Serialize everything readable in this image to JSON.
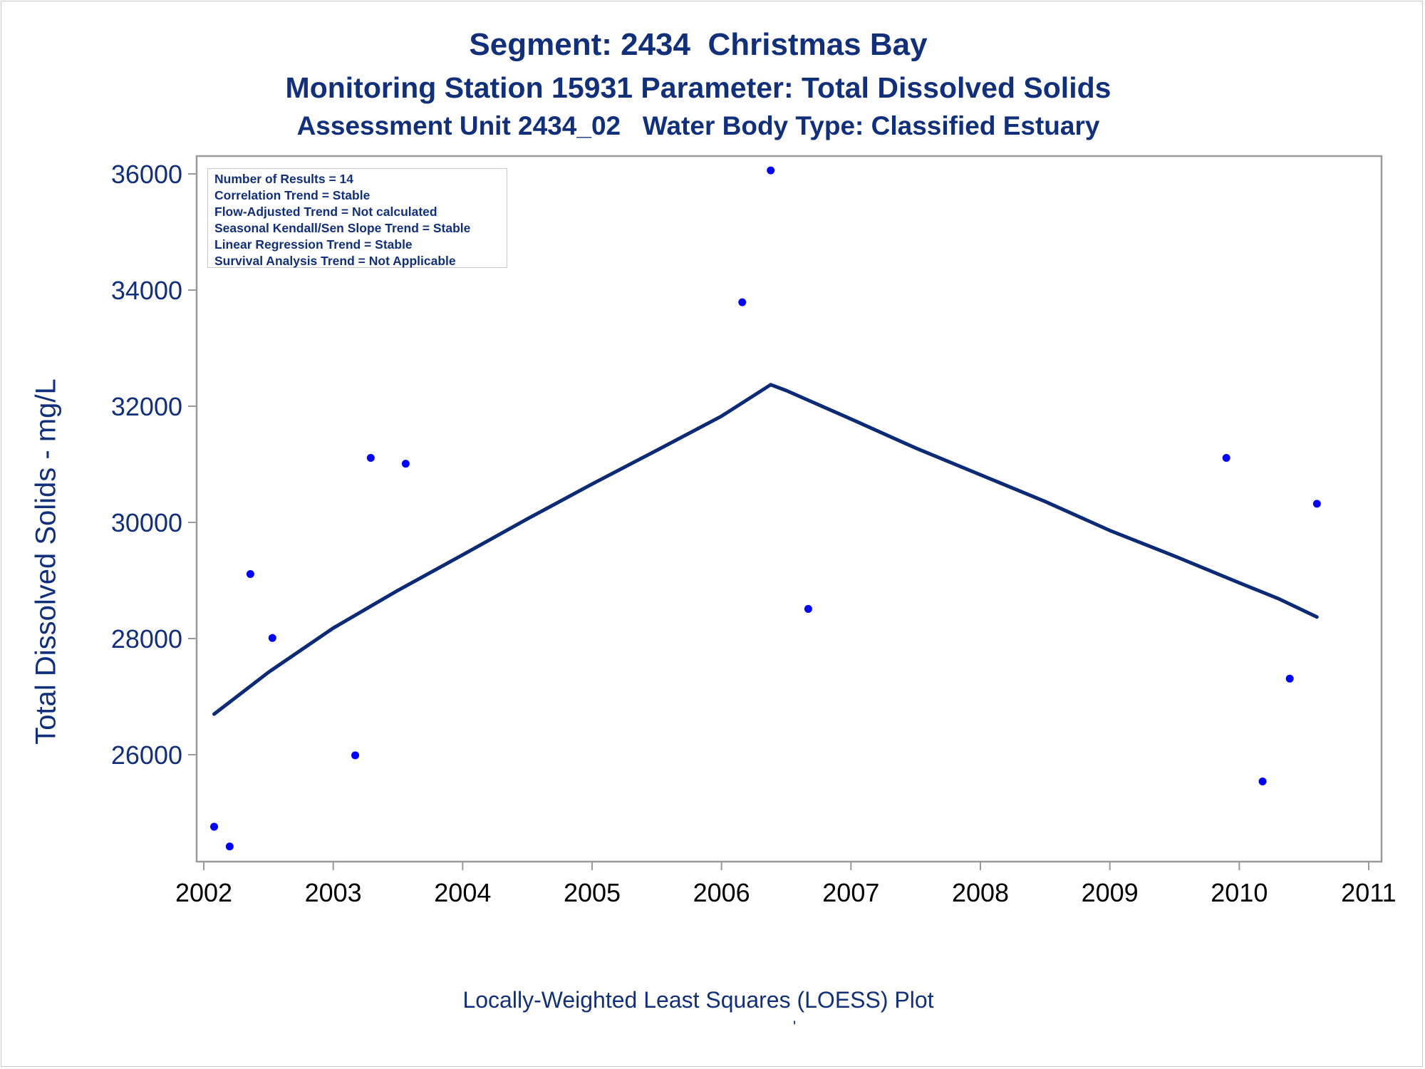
{
  "title": "Segment: 2434  Christmas Bay",
  "subtitle": "Monitoring Station 15931 Parameter: Total Dissolved Solids",
  "subtitle2": "Assessment Unit 2434_02   Water Body Type: Classified Estuary",
  "stats": [
    "Number of Results = 14",
    "Correlation Trend = Stable",
    "Flow-Adjusted Trend = Not calculated",
    "Seasonal Kendall/Sen Slope Trend = Stable",
    "Linear Regression Trend = Stable",
    "Survival Analysis Trend = Not Applicable"
  ],
  "footnote": "Locally-Weighted Least Squares (LOESS) Plot",
  "tick_mark": "'",
  "colors": {
    "text": "#12307a",
    "points": "#0000ff",
    "line": "#0d2a74",
    "axis": "#9a9a9a"
  },
  "chart_data": {
    "type": "scatter",
    "ylabel": "Total Dissolved Solids - mg/L",
    "xlabel": "",
    "xlim": [
      2001.98,
      2011.1
    ],
    "ylim": [
      24550,
      36300
    ],
    "x_ticks": [
      2002,
      2003,
      2004,
      2005,
      2006,
      2007,
      2008,
      2009,
      2010,
      2011
    ],
    "y_ticks": [
      26000,
      28000,
      30000,
      32000,
      34000,
      36000
    ],
    "x_tick_labels": [
      "2002",
      "2003",
      "2004",
      "2005",
      "2006",
      "2007",
      "2008",
      "2009",
      "2010",
      "2011"
    ],
    "y_tick_labels": [
      "26000",
      "28000",
      "30000",
      "32000",
      "34000",
      "36000"
    ],
    "points": [
      {
        "x": 2002.08,
        "y": 24760
      },
      {
        "x": 2002.2,
        "y": 24420
      },
      {
        "x": 2002.36,
        "y": 29110
      },
      {
        "x": 2002.53,
        "y": 28010
      },
      {
        "x": 2003.17,
        "y": 25990
      },
      {
        "x": 2003.29,
        "y": 31110
      },
      {
        "x": 2003.56,
        "y": 31010
      },
      {
        "x": 2006.16,
        "y": 33790
      },
      {
        "x": 2006.38,
        "y": 36060
      },
      {
        "x": 2006.67,
        "y": 28510
      },
      {
        "x": 2009.9,
        "y": 31110
      },
      {
        "x": 2010.18,
        "y": 25540
      },
      {
        "x": 2010.39,
        "y": 27310
      },
      {
        "x": 2010.6,
        "y": 30320
      }
    ],
    "loess_line": [
      {
        "x": 2002.08,
        "y": 26700
      },
      {
        "x": 2002.5,
        "y": 27420
      },
      {
        "x": 2003.0,
        "y": 28180
      },
      {
        "x": 2003.5,
        "y": 28830
      },
      {
        "x": 2004.0,
        "y": 29440
      },
      {
        "x": 2004.5,
        "y": 30060
      },
      {
        "x": 2005.0,
        "y": 30660
      },
      {
        "x": 2005.5,
        "y": 31240
      },
      {
        "x": 2006.0,
        "y": 31830
      },
      {
        "x": 2006.38,
        "y": 32370
      },
      {
        "x": 2006.5,
        "y": 32270
      },
      {
        "x": 2007.0,
        "y": 31780
      },
      {
        "x": 2007.5,
        "y": 31280
      },
      {
        "x": 2008.0,
        "y": 30820
      },
      {
        "x": 2008.5,
        "y": 30360
      },
      {
        "x": 2009.0,
        "y": 29860
      },
      {
        "x": 2009.5,
        "y": 29420
      },
      {
        "x": 2010.0,
        "y": 28960
      },
      {
        "x": 2010.3,
        "y": 28690
      },
      {
        "x": 2010.6,
        "y": 28370
      }
    ]
  }
}
